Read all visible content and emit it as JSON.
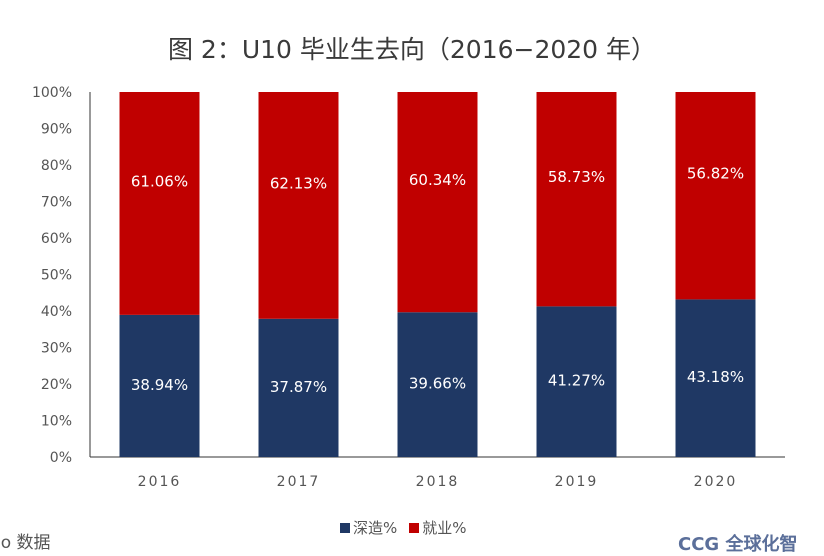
{
  "chart_data": {
    "type": "bar",
    "stacked": true,
    "title": "图 2：U10 毕业生去向（2016−2020 年）",
    "categories": [
      "2016",
      "2017",
      "2018",
      "2019",
      "2020"
    ],
    "series": [
      {
        "name": "深造%",
        "color": "#1f3864",
        "values": [
          38.94,
          37.87,
          39.66,
          41.27,
          43.18
        ]
      },
      {
        "name": "就业%",
        "color": "#c00000",
        "values": [
          61.06,
          62.13,
          60.34,
          58.73,
          56.82
        ]
      }
    ],
    "ylim": [
      0,
      100
    ],
    "yticks": [
      "0%",
      "10%",
      "20%",
      "30%",
      "40%",
      "50%",
      "60%",
      "70%",
      "80%",
      "90%",
      "100%"
    ],
    "grid": false,
    "legend": "bottom"
  },
  "source_text": "lo 数据",
  "logo_text": "CCG 全球化智"
}
